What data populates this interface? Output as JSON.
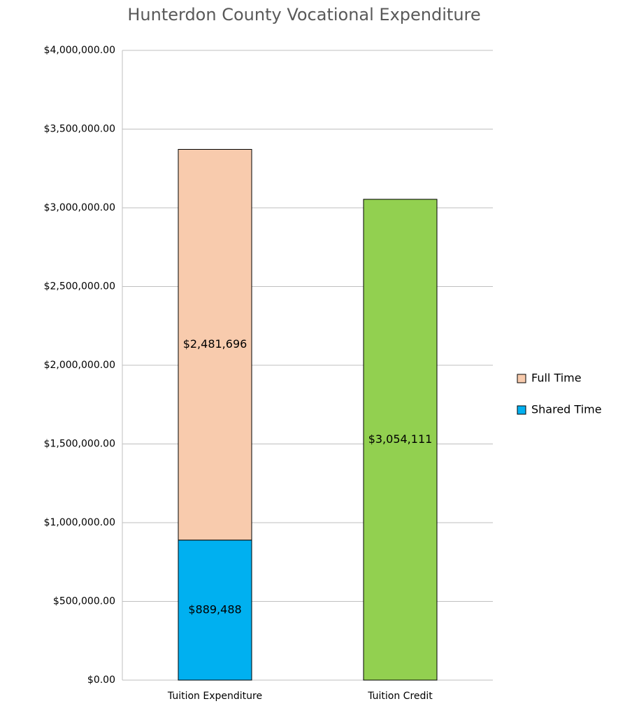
{
  "chart_data": {
    "type": "stacked_bar",
    "title": "Hunterdon County Vocational Expenditure",
    "categories": [
      "Tuition Expenditure",
      "Tuition Credit"
    ],
    "series": [
      {
        "name": "Shared Time",
        "color": "#00b0f0",
        "colors": [
          "#00b0f0",
          "#92d050"
        ],
        "values": [
          889488,
          3054111
        ],
        "value_labels": [
          "$889,488",
          "$3,054,111"
        ]
      },
      {
        "name": "Full Time",
        "color": "#f8cbad",
        "colors": [
          "#f8cbad",
          "#f8cbad"
        ],
        "values": [
          2481696,
          null
        ],
        "value_labels": [
          "$2,481,696",
          null
        ]
      }
    ],
    "ylim": [
      0,
      4000000
    ],
    "yticks": [
      {
        "value": 0,
        "label": "$0.00"
      },
      {
        "value": 500000,
        "label": "$500,000.00"
      },
      {
        "value": 1000000,
        "label": "$1,000,000.00"
      },
      {
        "value": 1500000,
        "label": "$1,500,000.00"
      },
      {
        "value": 2000000,
        "label": "$2,000,000.00"
      },
      {
        "value": 2500000,
        "label": "$2,500,000.00"
      },
      {
        "value": 3000000,
        "label": "$3,000,000.00"
      },
      {
        "value": 3500000,
        "label": "$3,500,000.00"
      },
      {
        "value": 4000000,
        "label": "$4,000,000.00"
      }
    ],
    "grid": true,
    "legend": "right"
  }
}
